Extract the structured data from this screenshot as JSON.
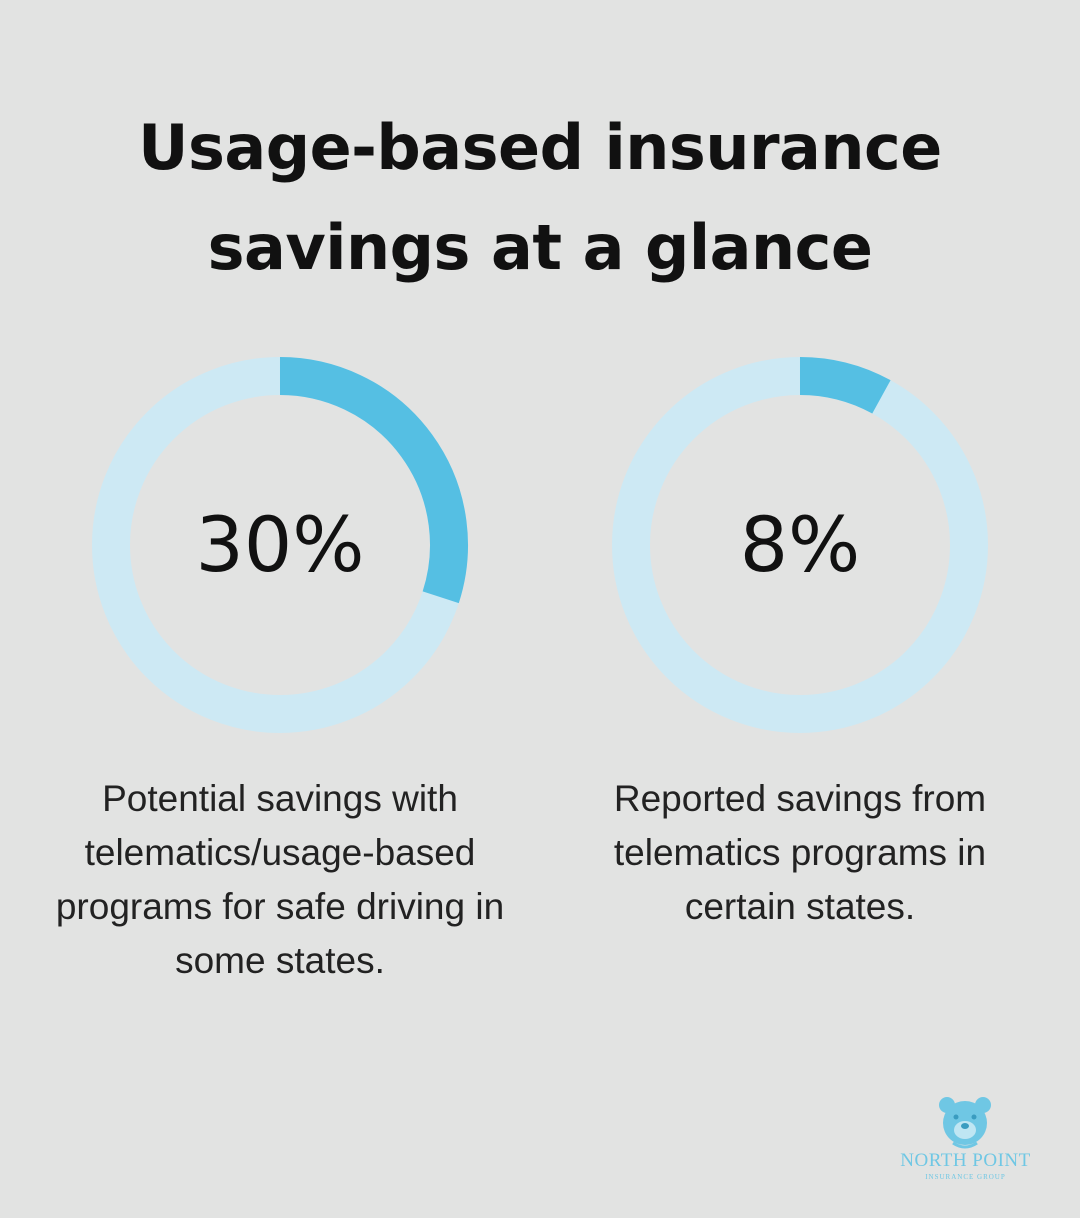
{
  "title": {
    "line1": "Usage-based insurance",
    "line2": "savings at a glance"
  },
  "colors": {
    "background": "#e2e3e2",
    "track": "#cde9f4",
    "fill": "#55bfe3",
    "text": "#111111"
  },
  "chart_data": [
    {
      "type": "pie",
      "subtype": "donut",
      "value": 30,
      "max": 100,
      "label": "30%",
      "caption": "Potential savings with telematics/usage-based programs for safe driving in some states."
    },
    {
      "type": "pie",
      "subtype": "donut",
      "value": 8,
      "max": 100,
      "label": "8%",
      "caption": "Reported savings from telematics programs in certain states."
    }
  ],
  "logo": {
    "icon": "bear-head-icon",
    "name": "NORTH POINT",
    "tagline": "INSURANCE GROUP"
  }
}
